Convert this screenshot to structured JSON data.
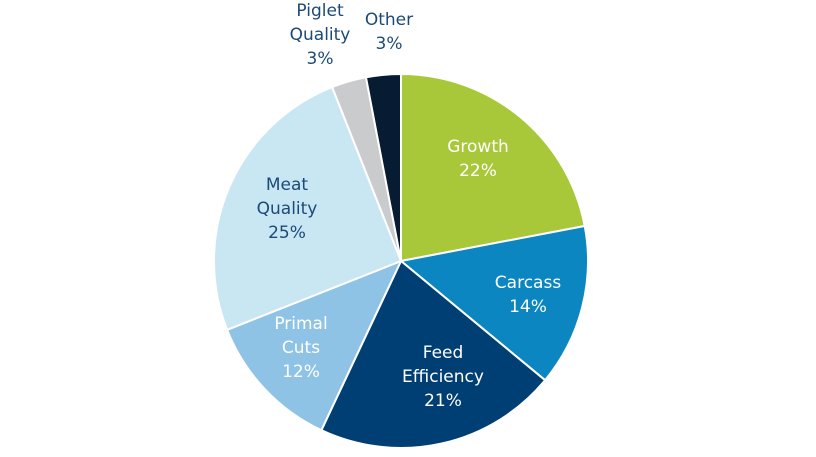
{
  "chart_data": {
    "type": "pie",
    "title": "",
    "start_angle_deg": 0,
    "direction": "clockwise",
    "slices": [
      {
        "name": "Growth",
        "lines": [
          "Growth",
          "22%"
        ],
        "value": 22,
        "color": "#a8c83a",
        "label_style": "light"
      },
      {
        "name": "Carcass",
        "lines": [
          "Carcass",
          "14%"
        ],
        "value": 14,
        "color": "#0b86c0",
        "label_style": "light"
      },
      {
        "name": "Feed Efficiency",
        "lines": [
          "Feed",
          "Efficiency",
          "21%"
        ],
        "value": 21,
        "color": "#003f73",
        "label_style": "light"
      },
      {
        "name": "Primal Cuts",
        "lines": [
          "Primal",
          "Cuts",
          "12%"
        ],
        "value": 12,
        "color": "#8fc3e5",
        "label_style": "light"
      },
      {
        "name": "Meat Quality",
        "lines": [
          "Meat",
          "Quality",
          "25%"
        ],
        "value": 25,
        "color": "#c9e6f3",
        "label_style": "dark"
      },
      {
        "name": "Piglet Quality",
        "lines": [
          "Piglet",
          "Quality",
          "3%"
        ],
        "value": 3,
        "color": "#c9cbcd",
        "label_style": "dark"
      },
      {
        "name": "Other",
        "lines": [
          "Other",
          "3%"
        ],
        "value": 3,
        "color": "#071b33",
        "label_style": "dark"
      }
    ]
  }
}
